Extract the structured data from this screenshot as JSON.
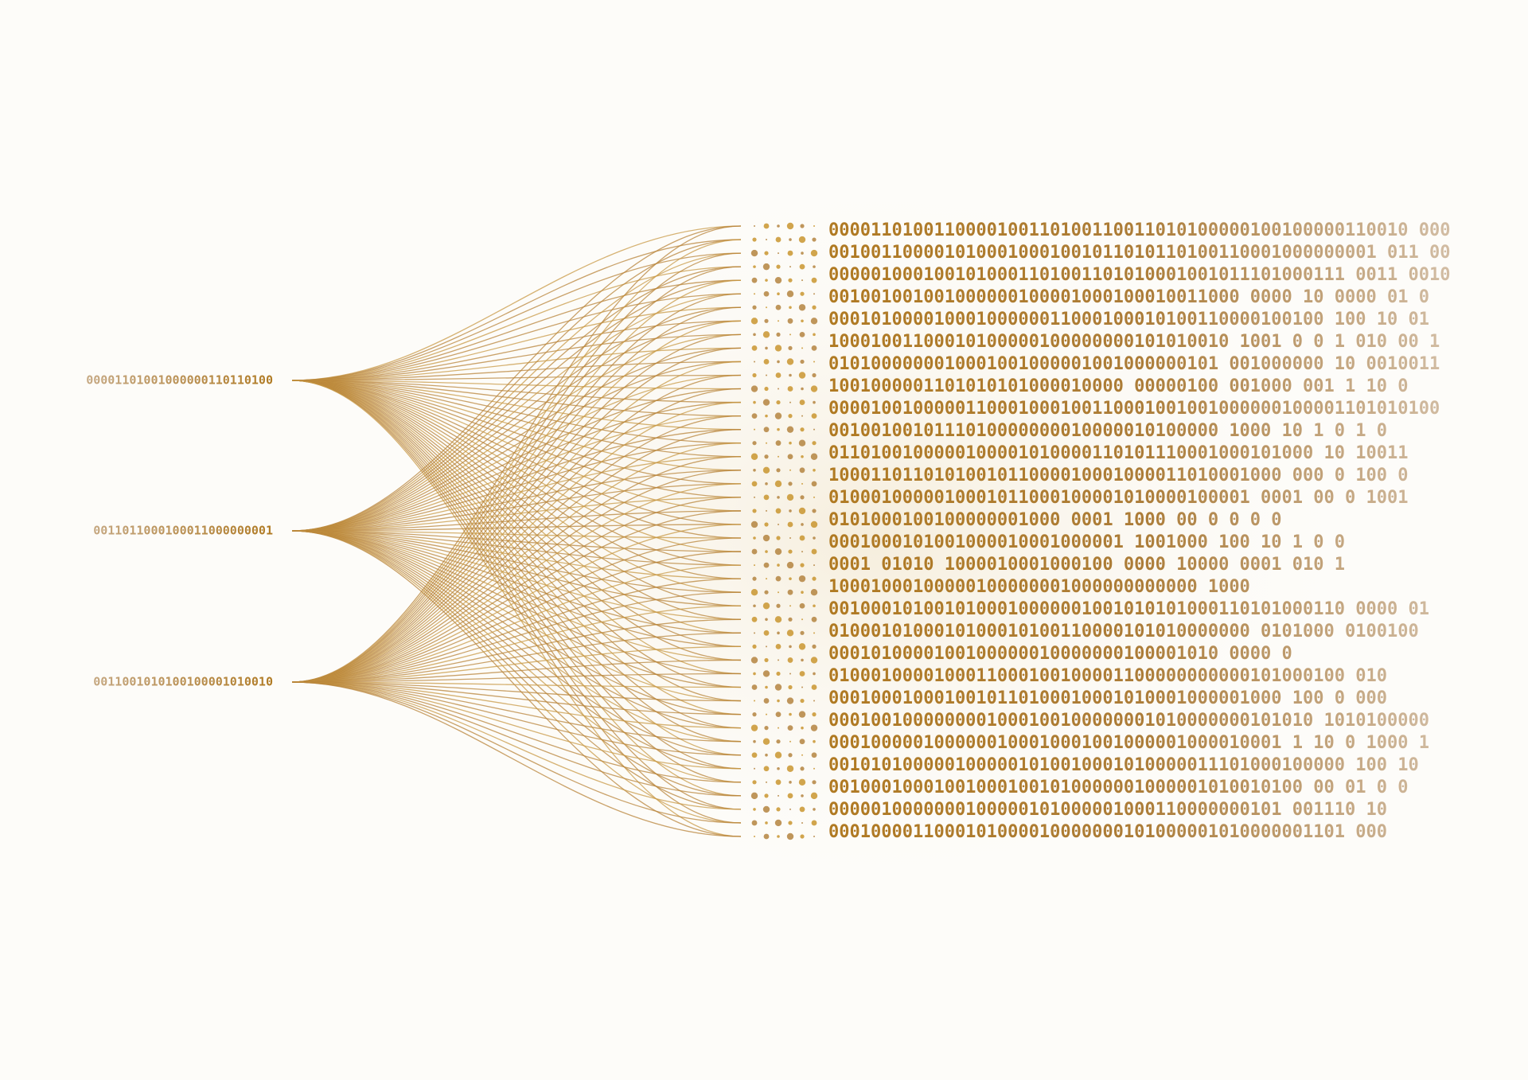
{
  "left_strings": [
    "00001101001000000110110100",
    "0011011000100011000000001",
    "0011001010100100001010010"
  ],
  "matrix_rows": [
    "0000110100110000100110100110011010100000100100000110010 000",
    "0010011000010100010001001011010110100110001000000001 011 00",
    "0000010001001010001101001101010001001011101000111 0011 0010",
    "001001001001000000100001000100010011000 0000 10 0000  01  0",
    "00010100001000100000011000100010100110000100100  100  10 01",
    "10001001100010100000100000000101010010 1001 0 0 1  010 00 1",
    "0101000000010001001000001001000000101 001000000 10  0010011",
    "1001000001101010101000010000 00000100 001000  001 1  10 0",
    "0000100100000110001000100110001001001000000100001101010100",
    "0010010010111010000000010000010100000 1000 10 1 0 1 0",
    "0110100100000100001010000110101110001000101000 10  10011",
    "1000110110101001011000010001000011010001000 000 0 100  0",
    "0100010000010001011000100001010000100001 0001 00  0  1001",
    "0101000100100000001000 0001 1000  00 0  0  0 0",
    "0001000101001000010001000001 1001000 100 10 1  0 0",
    "0001 01010 1000010001000100 0000 10000 0001 010 1",
    "10001000100000100000001000000000000 1000",
    "0010001010010100010000001001010101000110101000110 0000  01",
    "0100010100010100010100110000101010000000 0101000  0100100",
    "0001010000100100000010000000100001010 0000 0",
    "0100010000100011000100100001100000000000101000100 010",
    "0001000100010010110100010001010001000001000 100 0  000",
    "0001001000000001000100100000001010000000101010 1010100000",
    "0001000001000000100010001001000001000010001 1 10 0 1000  1",
    "0010101000001000001010010001010000011101000100000 100  10",
    "001000100010010001001010000001000001010010100 00 01 0 0",
    "0000010000000100000101000001000110000000101 001110  10",
    "0001000011000101000010000000101000001010000001101  000"
  ]
}
